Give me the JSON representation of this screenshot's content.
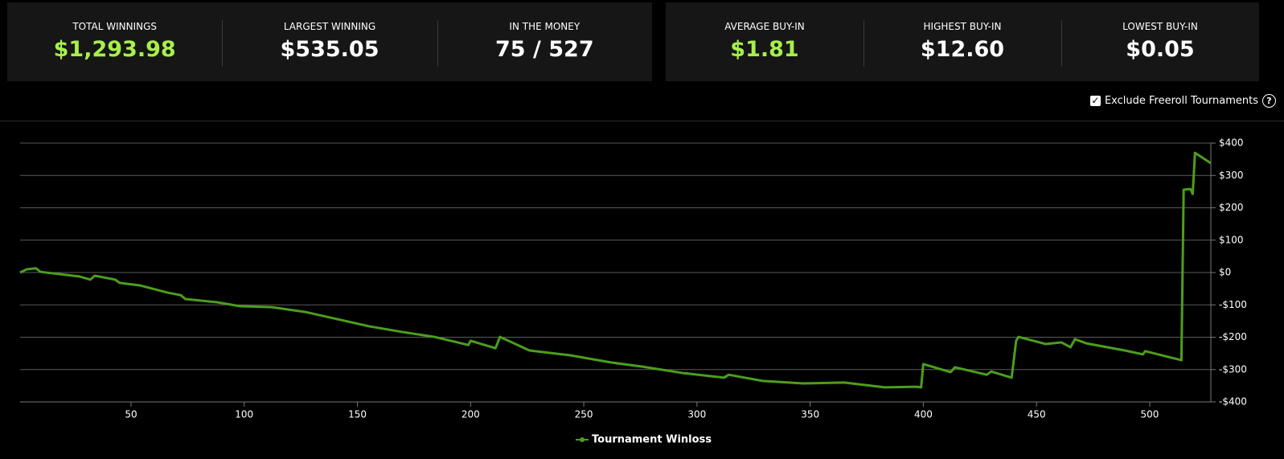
{
  "stat_groups": [
    {
      "stats": [
        {
          "label": "TOTAL WINNINGS",
          "value": "$1,293.98",
          "color": "#a6f04b"
        },
        {
          "label": "LARGEST WINNING",
          "value": "$535.05",
          "color": "#ffffff"
        },
        {
          "label": "IN THE MONEY",
          "value": "75 / 527",
          "color": "#ffffff"
        }
      ]
    },
    {
      "stats": [
        {
          "label": "AVERAGE BUY-IN",
          "value": "$1.81",
          "color": "#a6f04b"
        },
        {
          "label": "HIGHEST BUY-IN",
          "value": "$12.60",
          "color": "#ffffff"
        },
        {
          "label": "LOWEST BUY-IN",
          "value": "$0.05",
          "color": "#ffffff"
        }
      ]
    }
  ],
  "filter": {
    "label": "Exclude Freeroll Tournaments",
    "checked": true,
    "help": "?"
  },
  "chart_data": {
    "type": "line",
    "x": [
      1,
      4,
      8,
      10,
      27,
      32,
      34,
      43,
      45,
      54,
      66,
      72,
      74,
      88,
      98,
      112,
      127,
      141,
      155,
      170,
      184,
      199,
      200,
      211,
      213,
      226,
      244,
      262,
      276,
      294,
      312,
      314,
      329,
      347,
      365,
      383,
      397,
      399,
      400,
      412,
      414,
      428,
      430,
      439,
      441,
      442,
      454,
      461,
      465,
      467,
      472,
      489,
      497,
      498,
      514,
      515,
      518,
      519,
      520,
      527
    ],
    "series": [
      {
        "name": "Tournament Winloss",
        "color": "#4c9e1e",
        "values": [
          0,
          10,
          13,
          2,
          -12,
          -22,
          -10,
          -22,
          -32,
          -40,
          -62,
          -70,
          -82,
          -92,
          -104,
          -107,
          -122,
          -144,
          -166,
          -184,
          -199,
          -224,
          -211,
          -234,
          -199,
          -241,
          -256,
          -278,
          -291,
          -311,
          -325,
          -316,
          -335,
          -343,
          -340,
          -355,
          -353,
          -355,
          -283,
          -308,
          -293,
          -316,
          -306,
          -325,
          -211,
          -199,
          -221,
          -216,
          -231,
          -206,
          -219,
          -241,
          -253,
          -243,
          -271,
          256,
          258,
          243,
          370,
          338
        ]
      }
    ],
    "xlim": [
      1,
      527
    ],
    "xticks": [
      50,
      100,
      150,
      200,
      250,
      300,
      350,
      400,
      450,
      500
    ],
    "ylim": [
      -400,
      400
    ],
    "yticks": [
      {
        "value": -400,
        "label": "-$400"
      },
      {
        "value": -300,
        "label": "-$300"
      },
      {
        "value": -200,
        "label": "-$200"
      },
      {
        "value": -100,
        "label": "-$100"
      },
      {
        "value": 0,
        "label": "$0"
      },
      {
        "value": 100,
        "label": "$100"
      },
      {
        "value": 200,
        "label": "$200"
      },
      {
        "value": 300,
        "label": "$300"
      },
      {
        "value": 400,
        "label": "$400"
      }
    ],
    "y_axis_side": "right",
    "grid": true
  }
}
